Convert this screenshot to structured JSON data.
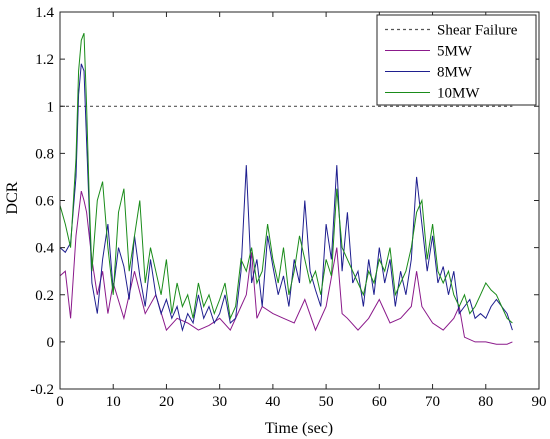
{
  "chart_data": {
    "type": "line",
    "xlabel": "Time (sec)",
    "ylabel": "DCR",
    "xlim": [
      0,
      90
    ],
    "ylim": [
      -0.2,
      1.4
    ],
    "xticks": [
      "0",
      "10",
      "20",
      "30",
      "40",
      "50",
      "60",
      "70",
      "80",
      "90"
    ],
    "yticks": [
      "-0.2",
      "0",
      "0.2",
      "0.4",
      "0.6",
      "0.8",
      "1",
      "1.2",
      "1.4"
    ],
    "grid": false,
    "legend_position": "top-right",
    "series": [
      {
        "name": "Shear Failure",
        "color": "#555555",
        "style": "dashed",
        "x": [
          0,
          85
        ],
        "y": [
          1.0,
          1.0
        ]
      },
      {
        "name": "5MW",
        "color": "#8b1a8b",
        "style": "solid",
        "x": [
          0,
          1,
          2,
          3,
          4,
          4.5,
          5,
          6,
          7,
          8,
          9,
          10,
          12,
          14,
          16,
          18,
          20,
          22,
          24,
          26,
          28,
          30,
          32,
          34,
          35,
          36,
          37,
          38,
          40,
          42,
          44,
          46,
          48,
          50,
          52,
          53,
          54,
          56,
          58,
          60,
          62,
          64,
          66,
          67,
          68,
          70,
          72,
          74,
          75,
          76,
          78,
          80,
          82,
          84,
          85
        ],
        "y": [
          0.28,
          0.3,
          0.1,
          0.45,
          0.64,
          0.6,
          0.55,
          0.35,
          0.2,
          0.3,
          0.12,
          0.25,
          0.1,
          0.3,
          0.12,
          0.2,
          0.05,
          0.1,
          0.08,
          0.05,
          0.07,
          0.1,
          0.05,
          0.15,
          0.2,
          0.38,
          0.1,
          0.15,
          0.12,
          0.1,
          0.08,
          0.18,
          0.05,
          0.15,
          0.4,
          0.12,
          0.1,
          0.05,
          0.1,
          0.18,
          0.08,
          0.1,
          0.15,
          0.3,
          0.15,
          0.08,
          0.05,
          0.1,
          0.15,
          0.02,
          0.0,
          0.0,
          -0.01,
          -0.01,
          0.0
        ]
      },
      {
        "name": "8MW",
        "color": "#1f1f8f",
        "style": "solid",
        "x": [
          0,
          1,
          2,
          3,
          3.5,
          4,
          4.5,
          5,
          5.5,
          6,
          7,
          8,
          9,
          10,
          11,
          12,
          13,
          14,
          15,
          16,
          17,
          18,
          19,
          20,
          21,
          22,
          23,
          24,
          25,
          26,
          27,
          28,
          29,
          30,
          31,
          32,
          33,
          34,
          35,
          36,
          37,
          38,
          39,
          40,
          41,
          42,
          43,
          44,
          45,
          46,
          47,
          48,
          49,
          50,
          51,
          52,
          53,
          54,
          55,
          56,
          57,
          58,
          59,
          60,
          61,
          62,
          63,
          64,
          65,
          66,
          67,
          68,
          69,
          70,
          71,
          72,
          73,
          74,
          75,
          76,
          77,
          78,
          79,
          80,
          81,
          82,
          83,
          84,
          85
        ],
        "y": [
          0.4,
          0.38,
          0.42,
          0.7,
          1.05,
          1.18,
          1.15,
          0.85,
          0.55,
          0.25,
          0.12,
          0.35,
          0.5,
          0.22,
          0.4,
          0.32,
          0.18,
          0.45,
          0.28,
          0.15,
          0.35,
          0.2,
          0.12,
          0.18,
          0.1,
          0.15,
          0.05,
          0.12,
          0.08,
          0.2,
          0.1,
          0.15,
          0.08,
          0.12,
          0.2,
          0.08,
          0.1,
          0.3,
          0.75,
          0.25,
          0.35,
          0.15,
          0.45,
          0.32,
          0.2,
          0.28,
          0.15,
          0.35,
          0.25,
          0.6,
          0.3,
          0.22,
          0.15,
          0.5,
          0.35,
          0.75,
          0.3,
          0.55,
          0.25,
          0.3,
          0.15,
          0.35,
          0.2,
          0.4,
          0.25,
          0.35,
          0.15,
          0.3,
          0.2,
          0.35,
          0.7,
          0.5,
          0.3,
          0.45,
          0.25,
          0.32,
          0.2,
          0.3,
          0.12,
          0.15,
          0.18,
          0.1,
          0.12,
          0.1,
          0.15,
          0.18,
          0.15,
          0.12,
          0.05
        ]
      },
      {
        "name": "10MW",
        "color": "#1a8c1a",
        "style": "solid",
        "x": [
          0,
          1,
          2,
          3,
          3.5,
          4,
          4.5,
          5,
          5.5,
          6,
          7,
          8,
          9,
          10,
          11,
          12,
          13,
          14,
          15,
          16,
          17,
          18,
          19,
          20,
          21,
          22,
          23,
          24,
          25,
          26,
          27,
          28,
          29,
          30,
          31,
          32,
          33,
          34,
          35,
          36,
          37,
          38,
          39,
          40,
          41,
          42,
          43,
          44,
          45,
          46,
          47,
          48,
          49,
          50,
          51,
          52,
          53,
          54,
          55,
          56,
          57,
          58,
          59,
          60,
          61,
          62,
          63,
          64,
          65,
          66,
          67,
          68,
          69,
          70,
          71,
          72,
          73,
          74,
          75,
          76,
          77,
          78,
          79,
          80,
          81,
          82,
          83,
          84,
          85
        ],
        "y": [
          0.58,
          0.5,
          0.4,
          0.78,
          1.15,
          1.28,
          1.31,
          1.0,
          0.6,
          0.3,
          0.6,
          0.68,
          0.4,
          0.2,
          0.55,
          0.65,
          0.3,
          0.45,
          0.6,
          0.25,
          0.4,
          0.3,
          0.2,
          0.35,
          0.12,
          0.25,
          0.15,
          0.2,
          0.1,
          0.25,
          0.15,
          0.2,
          0.12,
          0.18,
          0.25,
          0.1,
          0.15,
          0.35,
          0.3,
          0.4,
          0.25,
          0.3,
          0.5,
          0.35,
          0.25,
          0.4,
          0.2,
          0.3,
          0.45,
          0.35,
          0.25,
          0.3,
          0.2,
          0.35,
          0.28,
          0.65,
          0.4,
          0.35,
          0.3,
          0.25,
          0.2,
          0.3,
          0.25,
          0.35,
          0.3,
          0.4,
          0.2,
          0.25,
          0.3,
          0.4,
          0.55,
          0.6,
          0.35,
          0.5,
          0.3,
          0.25,
          0.3,
          0.2,
          0.15,
          0.2,
          0.12,
          0.15,
          0.2,
          0.25,
          0.22,
          0.2,
          0.15,
          0.1,
          0.08
        ]
      }
    ]
  }
}
